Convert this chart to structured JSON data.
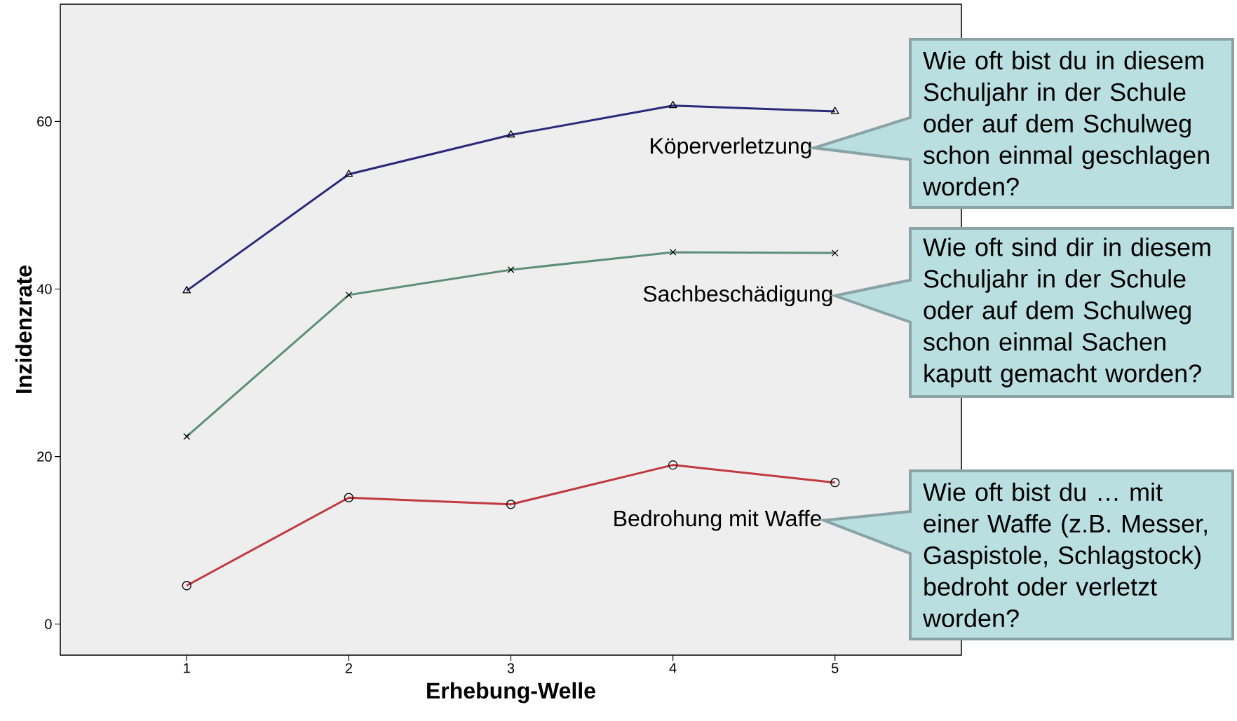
{
  "chart_data": {
    "type": "line",
    "xlabel": "Erhebung-Welle",
    "ylabel": "Inzidenzrate",
    "x": [
      1,
      2,
      3,
      4,
      5
    ],
    "xlim": [
      0.22,
      5.78
    ],
    "ylim": [
      -3.7,
      74
    ],
    "xticks": [
      1,
      2,
      3,
      4,
      5
    ],
    "yticks": [
      0,
      20,
      40,
      60
    ],
    "series": [
      {
        "name": "Köperverletzung",
        "color": "#2b2a7a",
        "marker": "triangle",
        "values": [
          39.8,
          53.7,
          58.4,
          61.9,
          61.2
        ]
      },
      {
        "name": "Sachbeschädigung",
        "color": "#5f8f78",
        "marker": "cross",
        "values": [
          22.4,
          39.3,
          42.3,
          44.4,
          44.3
        ]
      },
      {
        "name": "Bedrohung mit Waffe",
        "color": "#c0393f",
        "marker": "circle",
        "values": [
          4.6,
          15.1,
          14.3,
          19.0,
          16.9
        ]
      }
    ],
    "annotations": [
      "Wie oft bist du in diesem Schuljahr in der Schule oder auf dem Schulweg schon einmal geschlagen worden?",
      "Wie oft sind dir in diesem Schuljahr in der Schule oder auf dem Schulweg schon einmal Sachen kaputt gemacht worden?",
      "Wie oft bist du … mit einer Waffe (z.B. Messer, Gaspistole, Schlagstock) bedroht oder verletzt worden?"
    ]
  }
}
